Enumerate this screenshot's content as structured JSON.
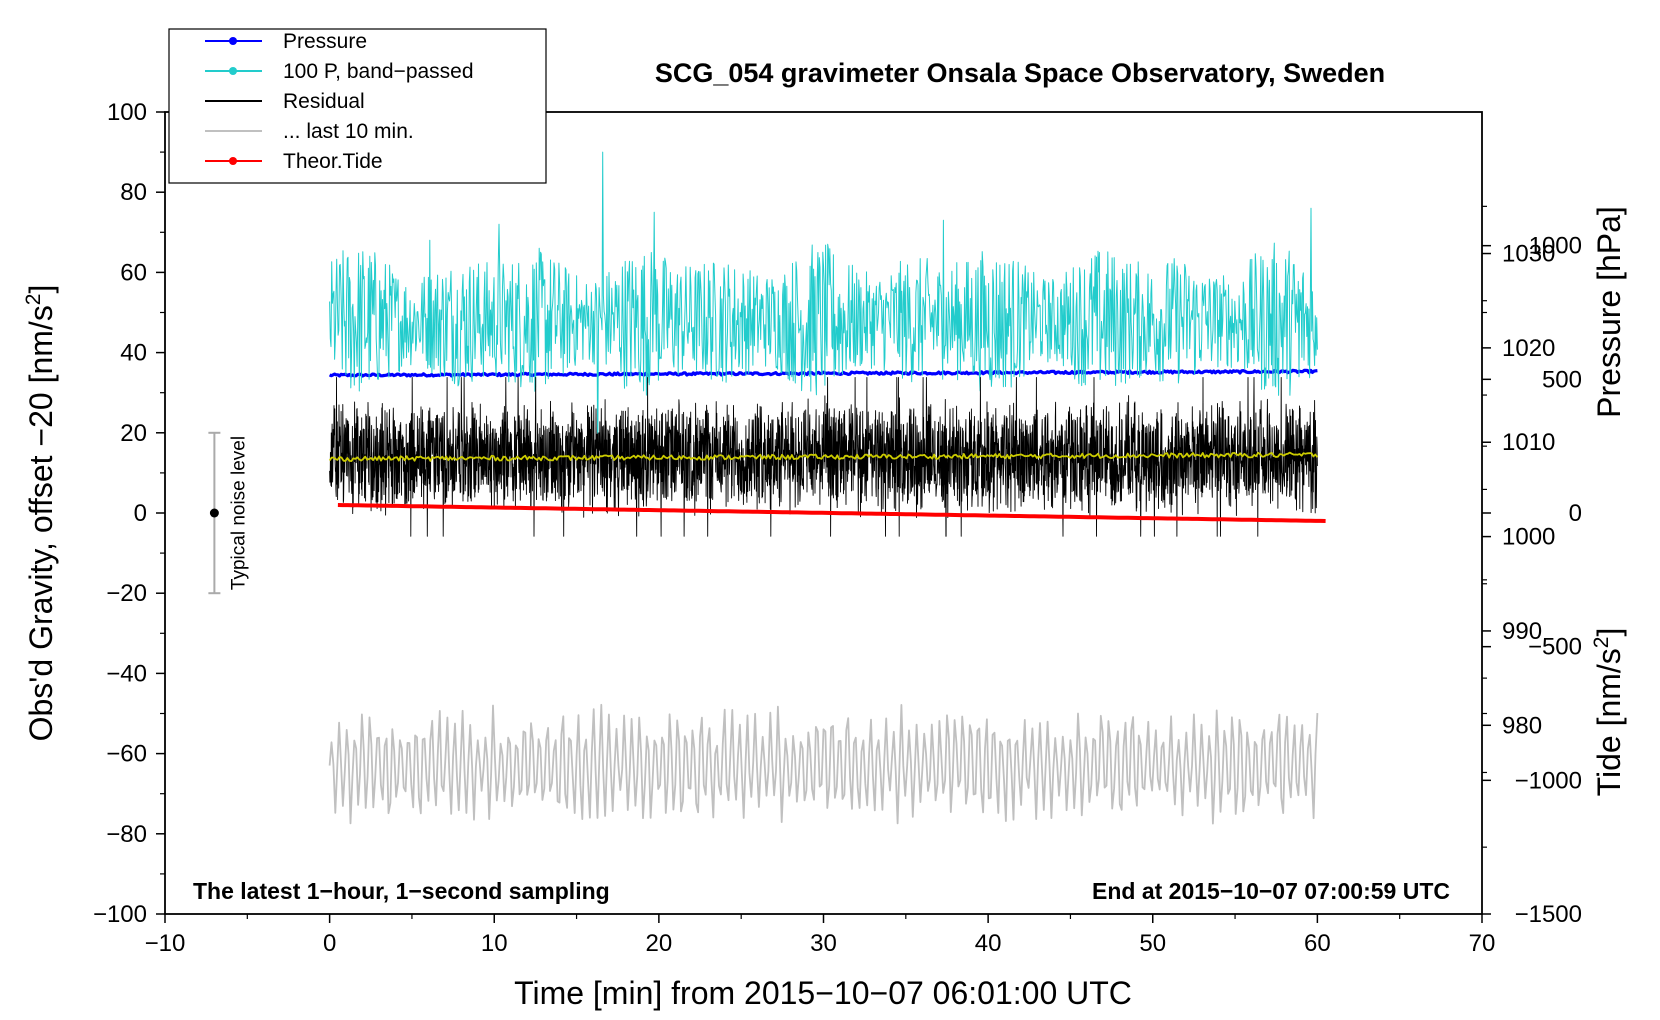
{
  "chart_data": {
    "type": "line",
    "title": "SCG_054 gravimeter Onsala Space Observatory, Sweden",
    "xlabel": "Time [min] from 2015−10−07 06:01:00 UTC",
    "ylabel_left": "Obs'd Gravity, offset −20 [nm/s",
    "ylabel_left_sup": "2",
    "ylabel_left_end": "]",
    "ylabel_right_pressure": "Pressure [hPa]",
    "ylabel_right_tide": "Tide [nm/s",
    "ylabel_right_tide_sup": "2",
    "ylabel_right_tide_end": "]",
    "note_left": "The latest 1−hour, 1−second sampling",
    "note_right": "End at 2015−10−07 07:00:59 UTC",
    "noise_label": "Typical noise level",
    "noise_range": [
      -20,
      20
    ],
    "noise_x": -7,
    "xlim": [
      -10,
      70
    ],
    "ylim_left": [
      -100,
      100
    ],
    "ylim_pressure": [
      960,
      1045
    ],
    "ylim_tide": [
      -1500,
      1500
    ],
    "x_ticks": [
      {
        "v": -10,
        "t": "−10"
      },
      {
        "v": 0,
        "t": "0"
      },
      {
        "v": 10,
        "t": "10"
      },
      {
        "v": 20,
        "t": "20"
      },
      {
        "v": 30,
        "t": "30"
      },
      {
        "v": 40,
        "t": "40"
      },
      {
        "v": 50,
        "t": "50"
      },
      {
        "v": 60,
        "t": "60"
      },
      {
        "v": 70,
        "t": "70"
      }
    ],
    "y_left_ticks": [
      {
        "v": 100,
        "t": "100"
      },
      {
        "v": 80,
        "t": "80"
      },
      {
        "v": 60,
        "t": "60"
      },
      {
        "v": 40,
        "t": "40"
      },
      {
        "v": 20,
        "t": "20"
      },
      {
        "v": 0,
        "t": "0"
      },
      {
        "v": -20,
        "t": "−20"
      },
      {
        "v": -40,
        "t": "−40"
      },
      {
        "v": -60,
        "t": "−60"
      },
      {
        "v": -80,
        "t": "−80"
      },
      {
        "v": -100,
        "t": "−100"
      }
    ],
    "y_pressure_ticks": [
      {
        "v": 1030,
        "t": "1030"
      },
      {
        "v": 1020,
        "t": "1020"
      },
      {
        "v": 1010,
        "t": "1010"
      },
      {
        "v": 1000,
        "t": "1000"
      },
      {
        "v": 990,
        "t": "990"
      },
      {
        "v": 980,
        "t": "980"
      }
    ],
    "y_tide_ticks": [
      {
        "v": 1000,
        "t": "1000"
      },
      {
        "v": 500,
        "t": "500"
      },
      {
        "v": 0,
        "t": "0"
      },
      {
        "v": -500,
        "t": "−500"
      },
      {
        "v": -1000,
        "t": "−1000"
      },
      {
        "v": -1500,
        "t": "−1500"
      }
    ],
    "legend": [
      {
        "label": "Pressure",
        "color": "#0000ff",
        "marker": true
      },
      {
        "label": "100 P, band−passed",
        "color": "#22cccc",
        "marker": true
      },
      {
        "label": "Residual",
        "color": "#000000",
        "marker": false
      },
      {
        "label": "... last 10 min.",
        "color": "#c0c0c0",
        "marker": false
      },
      {
        "label": "Theor.Tide",
        "color": "#ff0000",
        "marker": true
      }
    ],
    "series": [
      {
        "name": "Pressure",
        "axis": "pressure",
        "color": "#0000ff",
        "x_range": [
          0,
          60
        ],
        "y_start": 1017.1,
        "y_end": 1017.5,
        "noise": 0.25
      },
      {
        "name": "100 P, band−passed",
        "axis": "left",
        "color": "#22cccc",
        "x_range": [
          0,
          60
        ],
        "center": 48,
        "amplitude": 9,
        "spikes": [
          {
            "x": 16.6,
            "y": 90
          },
          {
            "x": 16.3,
            "y": 12
          },
          {
            "x": 19.7,
            "y": 75
          },
          {
            "x": 10.3,
            "y": 72
          },
          {
            "x": 37.3,
            "y": 73
          },
          {
            "x": 59.6,
            "y": 76
          },
          {
            "x": 58.9,
            "y": 34
          },
          {
            "x": 6.1,
            "y": 68
          }
        ]
      },
      {
        "name": "Residual",
        "axis": "left",
        "color": "#000000",
        "x_range": [
          0,
          60
        ],
        "center": 14,
        "amplitude": 11,
        "min": -8,
        "max": 35
      },
      {
        "name": "Residual smoothed",
        "axis": "left",
        "color": "#cccc00",
        "x_range": [
          0,
          60
        ],
        "y_start": 13.5,
        "y_end": 14.5
      },
      {
        "name": "... last 10 min.",
        "axis": "left",
        "color": "#c0c0c0",
        "x_range": [
          0,
          60
        ],
        "center": -63,
        "amplitude": 11,
        "min": -83,
        "max": -42
      },
      {
        "name": "Theor.Tide",
        "axis": "tide",
        "color": "#ff0000",
        "x_range": [
          0.5,
          60.5
        ],
        "y_start": 30,
        "y_end": -30
      }
    ]
  }
}
